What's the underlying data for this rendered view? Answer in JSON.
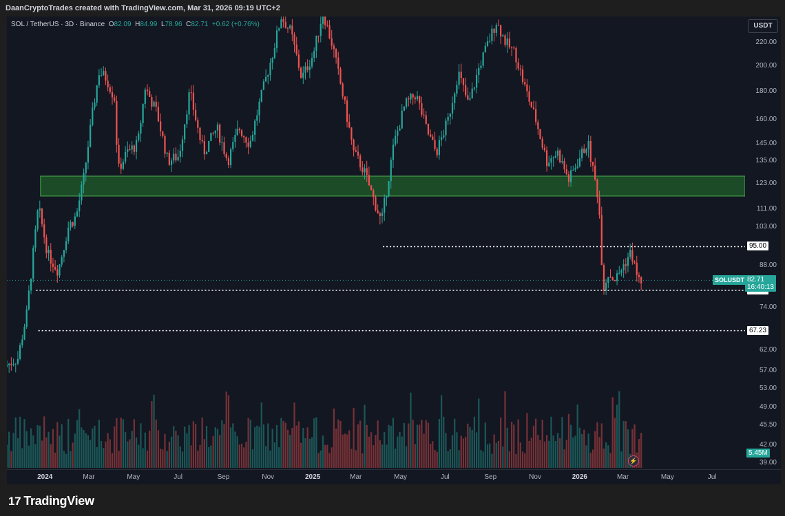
{
  "header": {
    "attribution": "DaanCryptoTrades created with TradingView.com, Mar 31, 2026 09:19 UTC+2"
  },
  "legend": {
    "symbol": "SOL / TetherUS · 3D · Binance",
    "o_label": "O",
    "o": "82.09",
    "h_label": "H",
    "h": "84.99",
    "l_label": "L",
    "l": "78.96",
    "c_label": "C",
    "c": "82.71",
    "change": "+0.62 (+0.76%)"
  },
  "currency_button": "USDT",
  "footer": {
    "brand": "TradingView",
    "brand_mark": "17"
  },
  "colors": {
    "background": "#131722",
    "up": "#26a69a",
    "down": "#ef5350",
    "zone_fill": "#1f5e2a",
    "zone_border": "#4caf50",
    "level_line": "#ffffff"
  },
  "chart_data": {
    "type": "candlestick",
    "title": "SOL / TetherUS · 3D · Binance",
    "scale": "log",
    "ylim": [
      38,
      245
    ],
    "y_ticks": [
      "220.00",
      "200.00",
      "180.00",
      "160.00",
      "145.00",
      "135.00",
      "123.00",
      "111.00",
      "103.00",
      "88.00",
      "74.00",
      "62.00",
      "57.00",
      "53.00",
      "49.00",
      "45.50",
      "42.00",
      "39.00"
    ],
    "x_ticks": [
      {
        "label": "2024",
        "date": "2024-01-01",
        "bold": true
      },
      {
        "label": "Mar",
        "date": "2024-03-01"
      },
      {
        "label": "May",
        "date": "2024-05-01"
      },
      {
        "label": "Jul",
        "date": "2024-07-01"
      },
      {
        "label": "Sep",
        "date": "2024-09-01"
      },
      {
        "label": "Nov",
        "date": "2024-11-01"
      },
      {
        "label": "2025",
        "date": "2025-01-01",
        "bold": true
      },
      {
        "label": "Mar",
        "date": "2025-03-01"
      },
      {
        "label": "May",
        "date": "2025-05-01"
      },
      {
        "label": "Jul",
        "date": "2025-07-01"
      },
      {
        "label": "Sep",
        "date": "2025-09-01"
      },
      {
        "label": "Nov",
        "date": "2025-11-01"
      },
      {
        "label": "2026",
        "date": "2026-01-01",
        "bold": true
      },
      {
        "label": "Mar",
        "date": "2026-03-01"
      },
      {
        "label": "May",
        "date": "2026-05-01"
      },
      {
        "label": "Jul",
        "date": "2026-07-01"
      }
    ],
    "x_range": [
      "2023-11-10",
      "2026-08-15"
    ],
    "zone": {
      "low": 117,
      "high": 127
    },
    "levels": [
      {
        "value": 95.0,
        "label": "95.00",
        "from": "2025-04-07"
      },
      {
        "value": 79.36,
        "label": "79.36",
        "from": "2023-12-20"
      },
      {
        "value": 67.23,
        "label": "67.23",
        "from": "2023-12-23"
      }
    ],
    "last_price": {
      "symbol": "SOLUSDT",
      "price": "82.71",
      "countdown": "16:40:13",
      "value": 82.71
    },
    "volume_label": "5.45M",
    "price_path": [
      [
        "2023-11-10",
        58
      ],
      [
        "2023-11-28",
        60
      ],
      [
        "2023-12-10",
        72
      ],
      [
        "2023-12-20",
        95
      ],
      [
        "2023-12-26",
        112
      ],
      [
        "2024-01-08",
        92
      ],
      [
        "2024-01-22",
        86
      ],
      [
        "2024-02-05",
        103
      ],
      [
        "2024-02-16",
        108
      ],
      [
        "2024-02-26",
        126
      ],
      [
        "2024-03-10",
        168
      ],
      [
        "2024-03-18",
        195
      ],
      [
        "2024-03-28",
        190
      ],
      [
        "2024-04-08",
        175
      ],
      [
        "2024-04-13",
        130
      ],
      [
        "2024-04-25",
        140
      ],
      [
        "2024-05-10",
        145
      ],
      [
        "2024-05-20",
        183
      ],
      [
        "2024-06-05",
        165
      ],
      [
        "2024-06-20",
        135
      ],
      [
        "2024-07-05",
        138
      ],
      [
        "2024-07-20",
        180
      ],
      [
        "2024-08-02",
        150
      ],
      [
        "2024-08-08",
        140
      ],
      [
        "2024-08-26",
        155
      ],
      [
        "2024-09-10",
        135
      ],
      [
        "2024-09-25",
        155
      ],
      [
        "2024-10-10",
        145
      ],
      [
        "2024-10-25",
        175
      ],
      [
        "2024-11-10",
        210
      ],
      [
        "2024-11-22",
        245
      ],
      [
        "2024-12-05",
        230
      ],
      [
        "2024-12-20",
        190
      ],
      [
        "2025-01-05",
        210
      ],
      [
        "2025-01-18",
        250
      ],
      [
        "2025-02-01",
        215
      ],
      [
        "2025-02-15",
        175
      ],
      [
        "2025-03-01",
        140
      ],
      [
        "2025-03-15",
        130
      ],
      [
        "2025-04-08",
        105
      ],
      [
        "2025-04-25",
        145
      ],
      [
        "2025-05-10",
        170
      ],
      [
        "2025-05-25",
        178
      ],
      [
        "2025-06-10",
        152
      ],
      [
        "2025-06-22",
        140
      ],
      [
        "2025-07-08",
        160
      ],
      [
        "2025-07-22",
        195
      ],
      [
        "2025-08-05",
        170
      ],
      [
        "2025-08-20",
        200
      ],
      [
        "2025-09-12",
        240
      ],
      [
        "2025-09-25",
        220
      ],
      [
        "2025-10-08",
        210
      ],
      [
        "2025-10-20",
        185
      ],
      [
        "2025-11-05",
        160
      ],
      [
        "2025-11-20",
        135
      ],
      [
        "2025-12-05",
        140
      ],
      [
        "2025-12-20",
        125
      ],
      [
        "2026-01-05",
        138
      ],
      [
        "2026-01-15",
        146
      ],
      [
        "2026-01-30",
        115
      ],
      [
        "2026-02-05",
        80
      ],
      [
        "2026-02-12",
        85
      ],
      [
        "2026-02-22",
        83
      ],
      [
        "2026-03-05",
        88
      ],
      [
        "2026-03-15",
        93
      ],
      [
        "2026-03-25",
        82.71
      ]
    ],
    "volume_scale": 1
  }
}
